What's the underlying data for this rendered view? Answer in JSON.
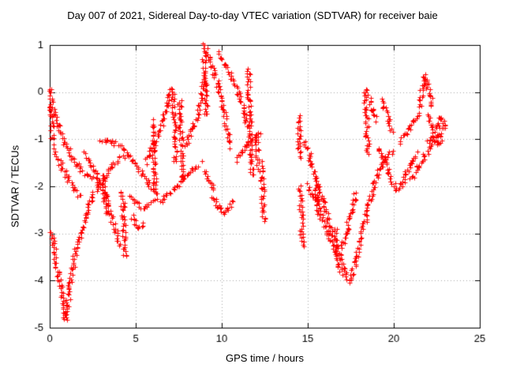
{
  "chart_data": {
    "type": "scatter",
    "title": "Day 007 of 2021, Sidereal Day-to-day VTEC variation (SDTVAR) for receiver baie",
    "xlabel": "GPS time / hours",
    "ylabel": "SDTVAR / TECUs",
    "xlim": [
      0,
      25
    ],
    "ylim": [
      -5,
      1
    ],
    "xticks": [
      0,
      5,
      10,
      15,
      20,
      25
    ],
    "yticks": [
      1,
      0,
      -1,
      -2,
      -3,
      -4,
      -5
    ],
    "grid": true,
    "legend": "none",
    "marker": "plus",
    "marker_color": "#ff0000",
    "axis_color": "#000000",
    "grid_color": "#a8a8a8",
    "tracks": [
      [
        [
          0.02,
          0.1
        ],
        [
          0.08,
          -0.5
        ],
        [
          0.15,
          -1.0
        ]
      ],
      [
        [
          0.05,
          -2.95
        ],
        [
          0.2,
          -3.2
        ],
        [
          0.35,
          -3.45
        ]
      ],
      [
        [
          0.3,
          -3.5
        ],
        [
          0.5,
          -3.85
        ],
        [
          0.65,
          -4.1
        ],
        [
          0.8,
          -4.5
        ],
        [
          0.9,
          -4.85
        ]
      ],
      [
        [
          0.9,
          -4.8
        ],
        [
          1.2,
          -4.0
        ],
        [
          1.5,
          -3.4
        ],
        [
          1.9,
          -2.85
        ],
        [
          2.3,
          -2.4
        ],
        [
          2.7,
          -2.05
        ],
        [
          3.1,
          -1.8
        ],
        [
          3.5,
          -1.6
        ],
        [
          3.9,
          -1.45
        ],
        [
          4.3,
          -1.35
        ]
      ],
      [
        [
          0.15,
          -0.3
        ],
        [
          0.5,
          -0.75
        ],
        [
          0.9,
          -1.1
        ],
        [
          1.3,
          -1.4
        ],
        [
          1.7,
          -1.6
        ],
        [
          2.1,
          -1.75
        ],
        [
          2.5,
          -1.85
        ]
      ],
      [
        [
          0.2,
          -1.15
        ],
        [
          0.6,
          -1.5
        ],
        [
          1.0,
          -1.8
        ],
        [
          1.4,
          -2.05
        ],
        [
          1.8,
          -2.2
        ]
      ],
      [
        [
          2.0,
          -1.3
        ],
        [
          2.4,
          -1.55
        ],
        [
          2.8,
          -1.85
        ],
        [
          3.2,
          -2.2
        ],
        [
          3.5,
          -2.55
        ],
        [
          3.8,
          -2.95
        ],
        [
          4.0,
          -3.25
        ]
      ],
      [
        [
          3.1,
          -1.75
        ],
        [
          3.2,
          -2.2
        ],
        [
          3.3,
          -2.6
        ]
      ],
      [
        [
          4.2,
          -2.1
        ],
        [
          4.3,
          -2.7
        ],
        [
          4.35,
          -3.3
        ],
        [
          4.4,
          -3.5
        ]
      ],
      [
        [
          2.9,
          -1.05
        ],
        [
          3.3,
          -1.0
        ],
        [
          3.7,
          -1.05
        ],
        [
          4.1,
          -1.15
        ],
        [
          4.5,
          -1.3
        ],
        [
          4.9,
          -1.5
        ],
        [
          5.3,
          -1.7
        ],
        [
          5.7,
          -1.9
        ],
        [
          6.1,
          -2.1
        ]
      ],
      [
        [
          4.6,
          -2.2
        ],
        [
          5.0,
          -2.35
        ],
        [
          5.4,
          -2.45
        ],
        [
          5.8,
          -2.4
        ],
        [
          6.2,
          -2.3
        ]
      ],
      [
        [
          4.8,
          -2.6
        ],
        [
          5.0,
          -2.8
        ],
        [
          5.2,
          -2.9
        ],
        [
          5.45,
          -2.8
        ]
      ],
      [
        [
          6.0,
          -0.6
        ],
        [
          6.05,
          -1.2
        ],
        [
          6.1,
          -1.8
        ],
        [
          6.15,
          -2.2
        ]
      ],
      [
        [
          5.6,
          -1.5
        ],
        [
          6.0,
          -1.15
        ],
        [
          6.4,
          -0.8
        ],
        [
          6.7,
          -0.45
        ],
        [
          6.95,
          -0.1
        ],
        [
          7.1,
          0.1
        ]
      ],
      [
        [
          7.15,
          0.05
        ],
        [
          7.2,
          -0.5
        ],
        [
          7.25,
          -1.0
        ],
        [
          7.3,
          -1.5
        ]
      ],
      [
        [
          6.4,
          -2.35
        ],
        [
          6.8,
          -2.2
        ],
        [
          7.2,
          -2.05
        ],
        [
          7.6,
          -1.9
        ],
        [
          8.0,
          -1.75
        ],
        [
          8.4,
          -1.6
        ],
        [
          8.8,
          -1.5
        ]
      ],
      [
        [
          7.55,
          -0.15
        ],
        [
          7.6,
          -0.7
        ],
        [
          7.65,
          -1.3
        ],
        [
          7.7,
          -1.9
        ]
      ],
      [
        [
          7.9,
          -1.15
        ],
        [
          8.3,
          -0.75
        ],
        [
          8.65,
          -0.35
        ],
        [
          8.9,
          0.1
        ],
        [
          9.0,
          0.45
        ]
      ],
      [
        [
          8.95,
          1.0
        ],
        [
          9.0,
          0.4
        ],
        [
          9.05,
          -0.2
        ],
        [
          9.1,
          -0.5
        ]
      ],
      [
        [
          9.0,
          -1.7
        ],
        [
          9.3,
          -1.9
        ],
        [
          9.5,
          -2.1
        ]
      ],
      [
        [
          9.15,
          0.9
        ],
        [
          9.45,
          0.55
        ],
        [
          9.75,
          0.15
        ],
        [
          10.05,
          -0.3
        ],
        [
          10.3,
          -0.75
        ],
        [
          10.5,
          -1.15
        ]
      ],
      [
        [
          9.5,
          -2.2
        ],
        [
          9.8,
          -2.45
        ],
        [
          10.1,
          -2.55
        ],
        [
          10.4,
          -2.45
        ],
        [
          10.6,
          -2.3
        ]
      ],
      [
        [
          9.8,
          0.85
        ],
        [
          10.2,
          0.6
        ],
        [
          10.6,
          0.3
        ],
        [
          11.0,
          -0.05
        ],
        [
          11.3,
          -0.4
        ],
        [
          11.5,
          -0.75
        ]
      ],
      [
        [
          11.55,
          0.5
        ],
        [
          11.6,
          -0.1
        ],
        [
          11.65,
          -0.8
        ],
        [
          11.7,
          -1.4
        ],
        [
          11.75,
          -1.8
        ]
      ],
      [
        [
          10.8,
          -1.45
        ],
        [
          11.2,
          -1.25
        ],
        [
          11.6,
          -1.05
        ],
        [
          12.0,
          -0.9
        ],
        [
          12.2,
          -0.85
        ]
      ],
      [
        [
          12.0,
          -0.95
        ],
        [
          12.05,
          -1.3
        ],
        [
          12.1,
          -1.6
        ]
      ],
      [
        [
          12.3,
          -1.5
        ],
        [
          12.35,
          -2.0
        ],
        [
          12.4,
          -2.5
        ],
        [
          12.45,
          -2.75
        ]
      ],
      [
        [
          14.45,
          -0.5
        ],
        [
          14.5,
          -0.95
        ],
        [
          14.55,
          -1.4
        ]
      ],
      [
        [
          14.55,
          -2.0
        ],
        [
          14.6,
          -2.6
        ],
        [
          14.65,
          -3.1
        ],
        [
          14.7,
          -3.3
        ]
      ],
      [
        [
          14.8,
          -1.05
        ],
        [
          15.2,
          -1.5
        ],
        [
          15.6,
          -2.0
        ],
        [
          16.0,
          -2.5
        ],
        [
          16.4,
          -3.0
        ],
        [
          16.8,
          -3.45
        ],
        [
          17.1,
          -3.75
        ],
        [
          17.35,
          -3.95
        ],
        [
          17.5,
          -4.0
        ]
      ],
      [
        [
          15.0,
          -1.95
        ],
        [
          15.4,
          -2.25
        ],
        [
          15.8,
          -2.65
        ],
        [
          16.2,
          -3.05
        ],
        [
          16.55,
          -3.4
        ]
      ],
      [
        [
          15.45,
          -1.85
        ],
        [
          15.5,
          -2.25
        ],
        [
          15.55,
          -2.6
        ]
      ],
      [
        [
          16.6,
          -2.9
        ],
        [
          16.7,
          -3.3
        ],
        [
          16.8,
          -3.6
        ],
        [
          16.9,
          -3.85
        ]
      ],
      [
        [
          17.5,
          -3.95
        ],
        [
          17.8,
          -3.6
        ],
        [
          18.1,
          -3.1
        ],
        [
          18.4,
          -2.6
        ],
        [
          18.7,
          -2.15
        ],
        [
          19.0,
          -1.8
        ],
        [
          19.3,
          -1.55
        ],
        [
          19.6,
          -1.35
        ],
        [
          19.9,
          -1.25
        ]
      ],
      [
        [
          16.95,
          -3.35
        ],
        [
          17.25,
          -2.95
        ],
        [
          17.55,
          -2.5
        ],
        [
          17.8,
          -2.15
        ]
      ],
      [
        [
          18.35,
          0.1
        ],
        [
          18.4,
          -0.4
        ],
        [
          18.45,
          -0.9
        ],
        [
          18.5,
          -1.3
        ]
      ],
      [
        [
          18.55,
          -0.1
        ],
        [
          18.75,
          -0.35
        ],
        [
          18.95,
          -0.6
        ]
      ],
      [
        [
          19.3,
          -0.15
        ],
        [
          19.5,
          -0.35
        ],
        [
          19.7,
          -0.6
        ],
        [
          19.9,
          -0.85
        ]
      ],
      [
        [
          19.1,
          -1.15
        ],
        [
          19.5,
          -1.5
        ],
        [
          19.9,
          -1.9
        ],
        [
          20.15,
          -2.1
        ],
        [
          20.4,
          -2.0
        ],
        [
          20.7,
          -1.75
        ],
        [
          21.0,
          -1.5
        ],
        [
          21.3,
          -1.3
        ]
      ],
      [
        [
          20.3,
          -1.05
        ],
        [
          20.7,
          -0.85
        ],
        [
          21.1,
          -0.65
        ],
        [
          21.45,
          -0.45
        ]
      ],
      [
        [
          21.5,
          -0.3
        ],
        [
          21.6,
          -0.05
        ],
        [
          21.7,
          0.2
        ],
        [
          21.8,
          0.35
        ],
        [
          21.95,
          0.2
        ],
        [
          22.1,
          -0.05
        ],
        [
          22.25,
          -0.3
        ]
      ],
      [
        [
          21.0,
          -1.85
        ],
        [
          21.4,
          -1.6
        ],
        [
          21.8,
          -1.35
        ],
        [
          22.2,
          -1.1
        ],
        [
          22.6,
          -0.9
        ],
        [
          22.9,
          -0.75
        ]
      ],
      [
        [
          21.9,
          -0.5
        ],
        [
          22.1,
          -0.65
        ],
        [
          22.3,
          -0.8
        ],
        [
          22.5,
          -0.7
        ],
        [
          22.7,
          -0.55
        ],
        [
          22.9,
          -0.65
        ],
        [
          23.05,
          -0.75
        ]
      ],
      [
        [
          22.0,
          -1.0
        ],
        [
          22.2,
          -0.9
        ],
        [
          22.4,
          -1.0
        ],
        [
          22.6,
          -1.1
        ],
        [
          22.8,
          -0.95
        ]
      ]
    ]
  }
}
